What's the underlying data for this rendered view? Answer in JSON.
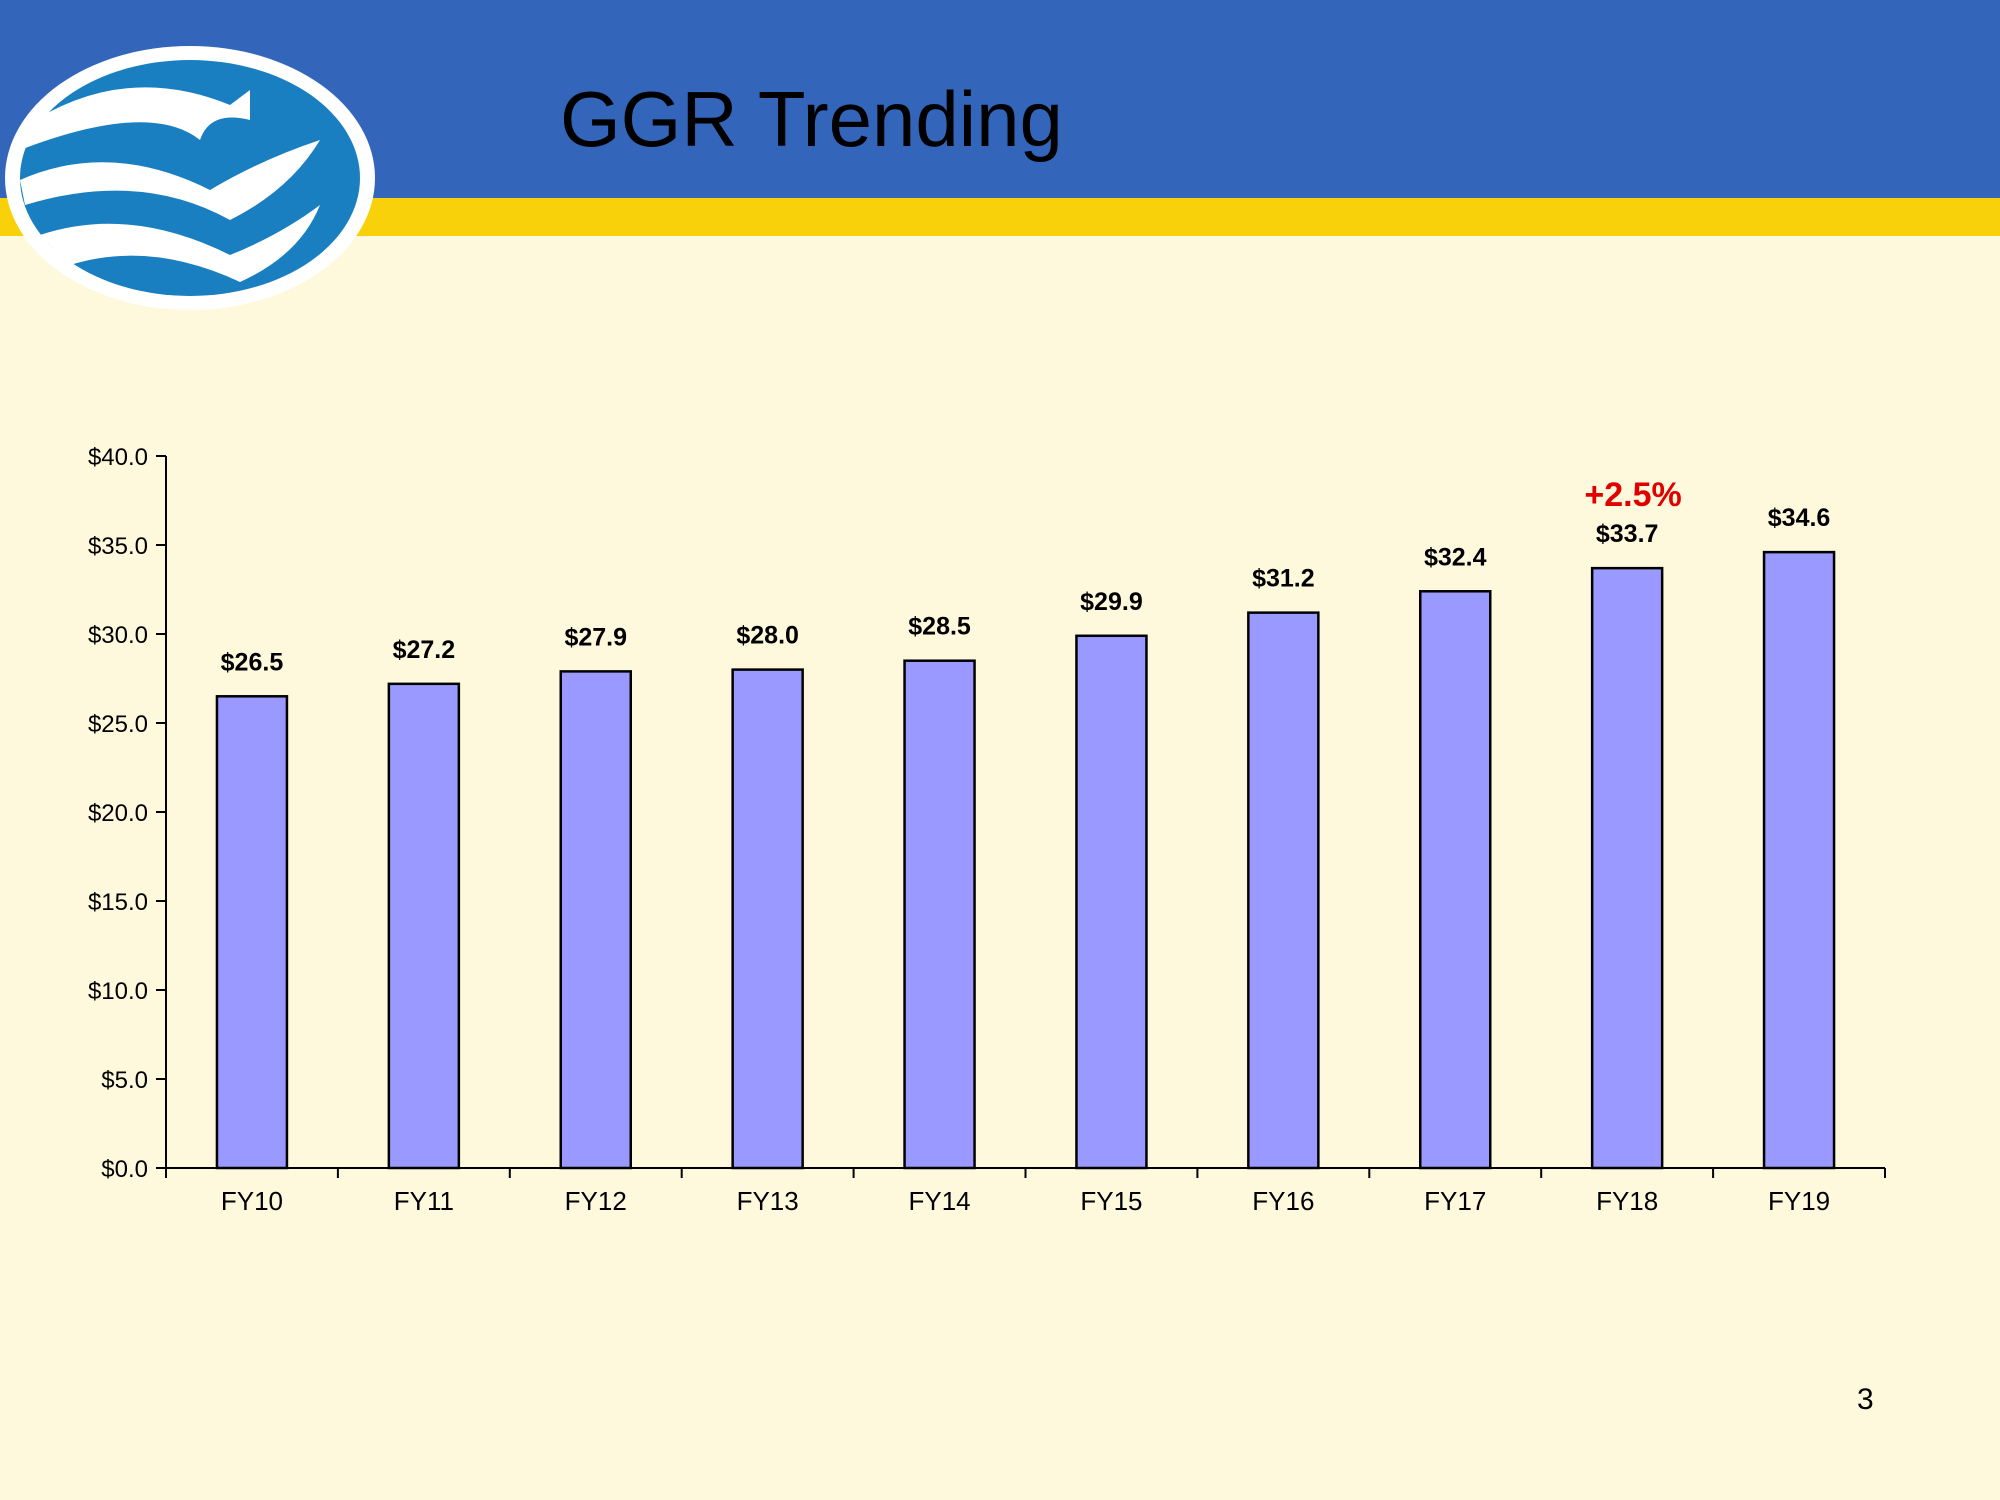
{
  "slide": {
    "title": "GGR Trending",
    "page_number": "3"
  },
  "colors": {
    "header_blue": "#3366BB",
    "gold_stripe": "#F8D10A",
    "background": "#FEF9DC",
    "bar_fill": "#9999FF",
    "annotation_red": "#E00000",
    "logo_blue": "#1A7FC1"
  },
  "chart_data": {
    "type": "bar",
    "categories": [
      "FY10",
      "FY11",
      "FY12",
      "FY13",
      "FY14",
      "FY15",
      "FY16",
      "FY17",
      "FY18",
      "FY19"
    ],
    "values": [
      26.5,
      27.2,
      27.9,
      28.0,
      28.5,
      29.9,
      31.2,
      32.4,
      33.7,
      34.6
    ],
    "data_labels": [
      "$26.5",
      "$27.2",
      "$27.9",
      "$28.0",
      "$28.5",
      "$29.9",
      "$31.2",
      "$32.4",
      "$33.7",
      "$34.6"
    ],
    "y_ticks": [
      "$0.0",
      "$5.0",
      "$10.0",
      "$15.0",
      "$20.0",
      "$25.0",
      "$30.0",
      "$35.0",
      "$40.0"
    ],
    "ylim": [
      0,
      40
    ],
    "grid": false,
    "annotation": "+2.5%"
  }
}
